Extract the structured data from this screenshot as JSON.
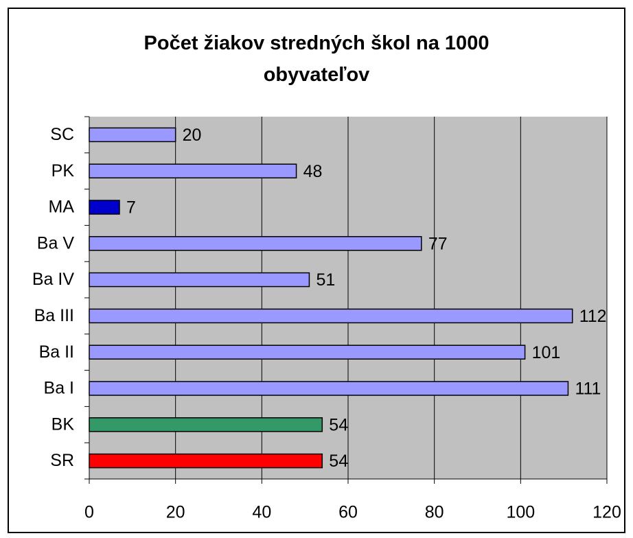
{
  "chart_data": {
    "type": "barh",
    "title": "Počet žiakov stredných škol na 1000 obyvateľov",
    "categories": [
      "SC",
      "PK",
      "MA",
      "Ba V",
      "Ba IV",
      "Ba III",
      "Ba II",
      "Ba I",
      "BK",
      "SR"
    ],
    "values": [
      20,
      48,
      7,
      77,
      51,
      112,
      101,
      111,
      54,
      54
    ],
    "colors": [
      "#9999ff",
      "#9999ff",
      "#0000cc",
      "#9999ff",
      "#9999ff",
      "#9999ff",
      "#9999ff",
      "#9999ff",
      "#339966",
      "#ff0000"
    ],
    "xlim": [
      0,
      120
    ],
    "xticks": [
      0,
      20,
      40,
      60,
      80,
      100,
      120
    ],
    "grid": true
  }
}
